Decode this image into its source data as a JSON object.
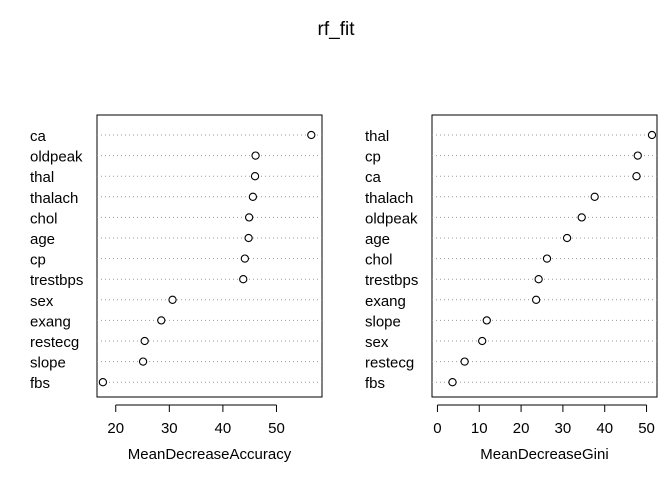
{
  "title": "rf_fit",
  "chart_data": [
    {
      "type": "dotchart",
      "xlabel": "MeanDecreaseAccuracy",
      "xlim": [
        16.5,
        58.5
      ],
      "xticks": [
        20,
        30,
        40,
        50
      ],
      "grid": true,
      "labels": [
        "ca",
        "oldpeak",
        "thal",
        "thalach",
        "chol",
        "age",
        "cp",
        "trestbps",
        "sex",
        "exang",
        "restecg",
        "slope",
        "fbs"
      ],
      "values": [
        56.5,
        46.1,
        46.0,
        45.6,
        44.9,
        44.8,
        44.1,
        43.8,
        30.6,
        28.5,
        25.4,
        25.1,
        17.6
      ]
    },
    {
      "type": "dotchart",
      "xlabel": "MeanDecreaseGini",
      "xlim": [
        -1.3,
        52.5
      ],
      "xticks": [
        0,
        10,
        20,
        30,
        40,
        50
      ],
      "grid": true,
      "labels": [
        "thal",
        "cp",
        "ca",
        "thalach",
        "oldpeak",
        "age",
        "chol",
        "trestbps",
        "exang",
        "slope",
        "sex",
        "restecg",
        "fbs"
      ],
      "values": [
        51.3,
        47.9,
        47.6,
        37.6,
        34.5,
        31.0,
        26.2,
        24.2,
        23.6,
        11.8,
        10.7,
        6.5,
        3.6
      ]
    }
  ]
}
